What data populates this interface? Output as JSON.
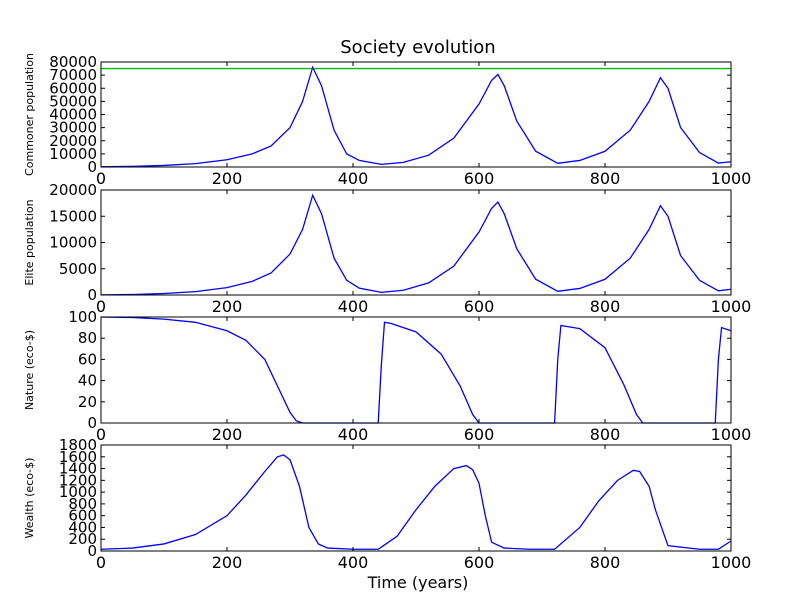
{
  "figure": {
    "title": "Society evolution",
    "xlabel": "Time (years)"
  },
  "chart_data": [
    {
      "type": "line",
      "ylabel": "Commoner population",
      "xlim": [
        0,
        1000
      ],
      "ylim": [
        0,
        80000
      ],
      "xticks": [
        "0",
        "200",
        "400",
        "600",
        "800",
        "1000"
      ],
      "yticks": [
        "0",
        "10000",
        "20000",
        "30000",
        "40000",
        "50000",
        "60000",
        "70000",
        "80000"
      ],
      "show_xticklabels": true,
      "reference_line": {
        "y": 75000,
        "color": "#00bb00"
      },
      "series": [
        {
          "color": "#0000ff",
          "x": [
            0,
            50,
            100,
            150,
            200,
            240,
            270,
            300,
            320,
            336,
            350,
            370,
            390,
            410,
            445,
            480,
            520,
            560,
            600,
            620,
            630,
            640,
            660,
            690,
            725,
            760,
            800,
            840,
            870,
            888,
            900,
            920,
            950,
            980,
            1000
          ],
          "y": [
            200,
            500,
            1200,
            2600,
            5500,
            10000,
            16000,
            30000,
            50000,
            76000,
            62000,
            28000,
            10000,
            5000,
            2000,
            3500,
            9000,
            22000,
            48000,
            66000,
            70500,
            62000,
            35000,
            12000,
            2800,
            5000,
            12000,
            28000,
            50000,
            68000,
            60000,
            30000,
            11000,
            3000,
            4000
          ]
        }
      ]
    },
    {
      "type": "line",
      "ylabel": "Elite population",
      "xlim": [
        0,
        1000
      ],
      "ylim": [
        0,
        20000
      ],
      "xticks": [
        "0",
        "200",
        "400",
        "600",
        "800",
        "1000"
      ],
      "yticks": [
        "0",
        "5000",
        "10000",
        "15000",
        "20000"
      ],
      "show_xticklabels": true,
      "series": [
        {
          "color": "#0000ff",
          "x": [
            0,
            50,
            100,
            150,
            200,
            240,
            270,
            300,
            320,
            336,
            350,
            370,
            390,
            410,
            445,
            480,
            520,
            560,
            600,
            620,
            630,
            640,
            660,
            690,
            725,
            760,
            800,
            840,
            870,
            888,
            900,
            920,
            950,
            980,
            1000
          ],
          "y": [
            30,
            100,
            280,
            650,
            1400,
            2600,
            4200,
            7800,
            12500,
            19000,
            15500,
            7000,
            2800,
            1300,
            500,
            900,
            2300,
            5500,
            12000,
            16500,
            17700,
            15500,
            8800,
            3000,
            700,
            1250,
            3000,
            7000,
            12500,
            17000,
            15000,
            7500,
            2800,
            800,
            1100
          ]
        }
      ]
    },
    {
      "type": "line",
      "ylabel": "Nature (eco-$)",
      "xlim": [
        0,
        1000
      ],
      "ylim": [
        0,
        100
      ],
      "xticks": [
        "0",
        "200",
        "400",
        "600",
        "800",
        "1000"
      ],
      "yticks": [
        "0",
        "20",
        "40",
        "60",
        "80",
        "100"
      ],
      "show_xticklabels": true,
      "series": [
        {
          "color": "#0000ff",
          "x": [
            0,
            50,
            100,
            150,
            200,
            230,
            260,
            280,
            300,
            310,
            320,
            400,
            440,
            445,
            450,
            460,
            500,
            540,
            570,
            590,
            600,
            700,
            720,
            725,
            730,
            760,
            800,
            830,
            850,
            860,
            900,
            975,
            980,
            985,
            1000
          ],
          "y": [
            100,
            99.5,
            98,
            95,
            87,
            78,
            60,
            35,
            10,
            2,
            0,
            0,
            0,
            55,
            95,
            94,
            86,
            65,
            35,
            8,
            0,
            0,
            0,
            60,
            92,
            89,
            71,
            36,
            8,
            0,
            0,
            0,
            60,
            90,
            87
          ]
        }
      ]
    },
    {
      "type": "line",
      "ylabel": "Wealth (eco-$)",
      "xlim": [
        0,
        1000
      ],
      "ylim": [
        0,
        1800
      ],
      "xticks": [
        "0",
        "200",
        "400",
        "600",
        "800",
        "1000"
      ],
      "yticks": [
        "0",
        "200",
        "400",
        "600",
        "800",
        "1000",
        "1200",
        "1400",
        "1600",
        "1800"
      ],
      "show_xticklabels": true,
      "series": [
        {
          "color": "#0000ff",
          "x": [
            0,
            50,
            100,
            150,
            200,
            230,
            260,
            280,
            290,
            300,
            315,
            330,
            345,
            360,
            400,
            440,
            470,
            500,
            530,
            560,
            580,
            590,
            600,
            610,
            620,
            640,
            680,
            720,
            760,
            790,
            820,
            845,
            855,
            870,
            880,
            900,
            950,
            980,
            1000
          ],
          "y": [
            30,
            50,
            120,
            280,
            600,
            950,
            1350,
            1600,
            1630,
            1550,
            1100,
            400,
            120,
            50,
            30,
            30,
            250,
            700,
            1100,
            1400,
            1450,
            1380,
            1150,
            600,
            150,
            50,
            30,
            30,
            400,
            850,
            1200,
            1370,
            1350,
            1100,
            700,
            90,
            30,
            30,
            170
          ]
        }
      ]
    }
  ]
}
